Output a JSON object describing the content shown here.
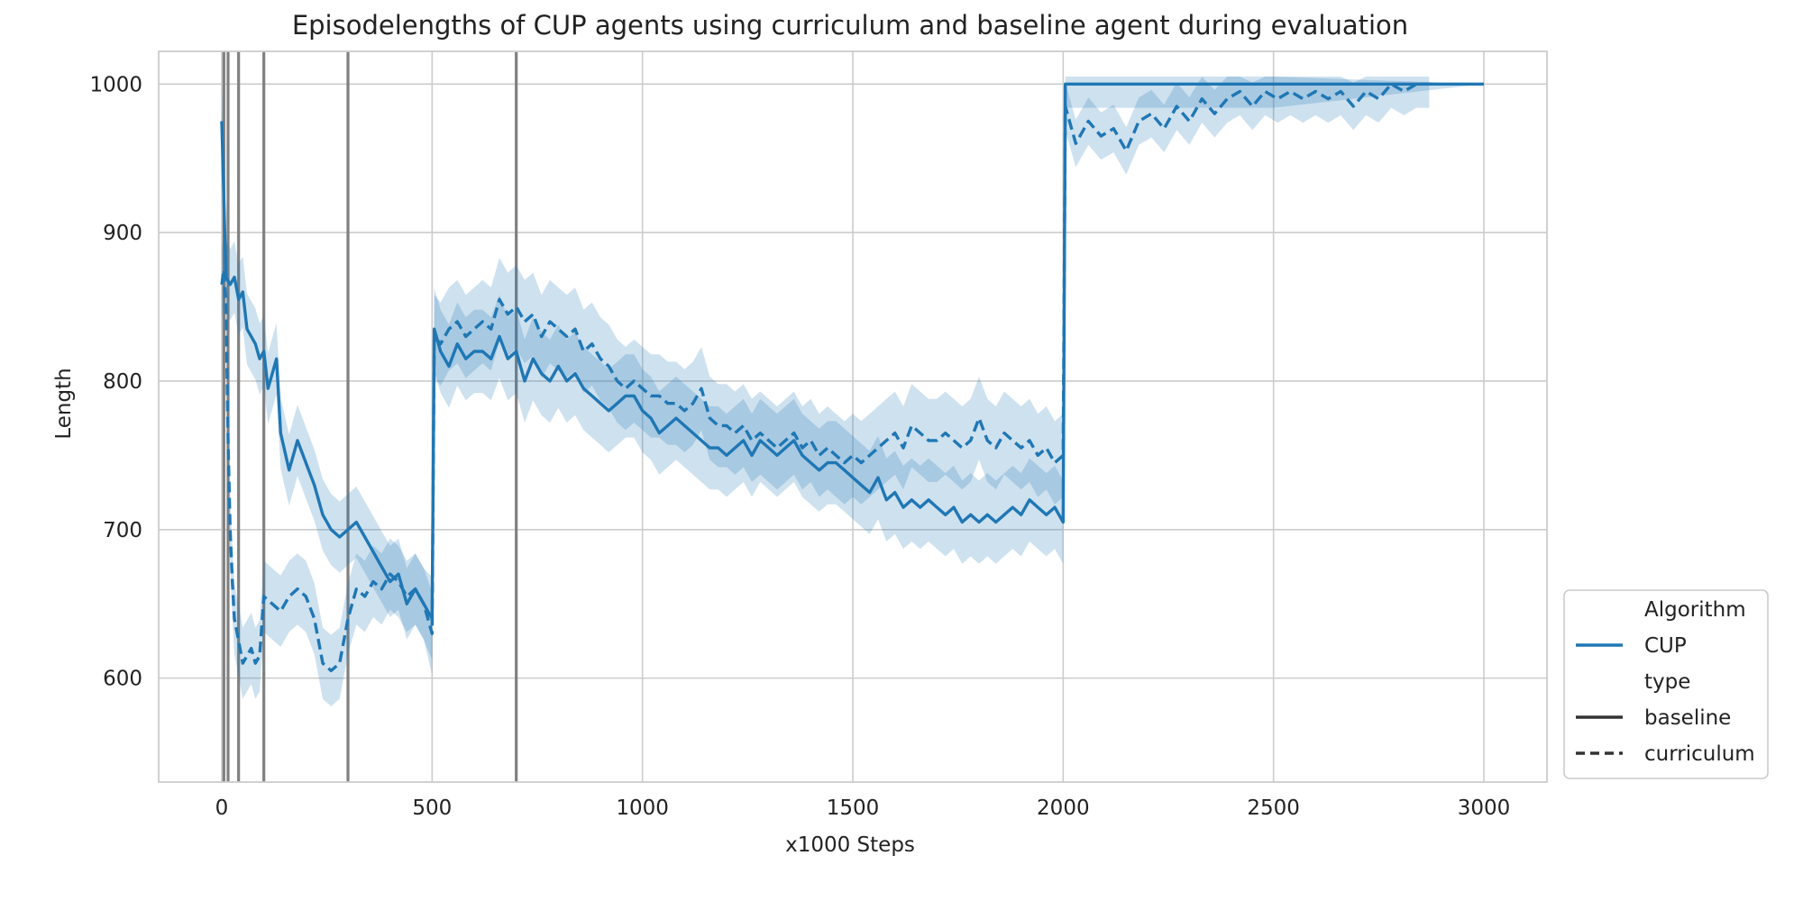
{
  "chart_data": {
    "type": "line",
    "title": "Episodelengths of CUP agents using curriculum and baseline agent during evaluation",
    "xlabel": "x1000 Steps",
    "ylabel": "Length",
    "xlim": [
      -150,
      3150
    ],
    "ylim": [
      530,
      1022
    ],
    "x_ticks": [
      0,
      500,
      1000,
      1500,
      2000,
      2500,
      3000
    ],
    "y_ticks": [
      600,
      700,
      800,
      900,
      1000
    ],
    "grid": true,
    "legend_position": "lower right, outside plot area",
    "colors": {
      "series": "#1f77b4",
      "band": "#1f77b4",
      "curriculum_markers": "#808080",
      "grid": "#cccccc",
      "axes": "#cccccc"
    },
    "curriculum_switch_steps": [
      5,
      15,
      40,
      100,
      300,
      700
    ],
    "legend": {
      "title_algorithm": "Algorithm",
      "algorithm_entries": [
        "CUP"
      ],
      "title_type": "type",
      "type_entries": [
        "baseline",
        "curriculum"
      ]
    },
    "series": [
      {
        "name": "baseline",
        "linestyle": "solid",
        "points": [
          [
            0,
            975
          ],
          [
            10,
            870
          ],
          [
            20,
            865
          ],
          [
            30,
            870
          ],
          [
            40,
            855
          ],
          [
            50,
            860
          ],
          [
            60,
            835
          ],
          [
            80,
            825
          ],
          [
            90,
            815
          ],
          [
            100,
            820
          ],
          [
            110,
            795
          ],
          [
            120,
            805
          ],
          [
            130,
            815
          ],
          [
            140,
            765
          ],
          [
            160,
            740
          ],
          [
            180,
            760
          ],
          [
            200,
            745
          ],
          [
            220,
            730
          ],
          [
            240,
            710
          ],
          [
            260,
            700
          ],
          [
            280,
            695
          ],
          [
            300,
            700
          ],
          [
            320,
            705
          ],
          [
            340,
            695
          ],
          [
            360,
            685
          ],
          [
            380,
            675
          ],
          [
            400,
            665
          ],
          [
            420,
            670
          ],
          [
            440,
            650
          ],
          [
            460,
            660
          ],
          [
            480,
            650
          ],
          [
            500,
            640
          ],
          [
            505,
            835
          ],
          [
            520,
            820
          ],
          [
            540,
            810
          ],
          [
            560,
            825
          ],
          [
            580,
            815
          ],
          [
            600,
            820
          ],
          [
            620,
            820
          ],
          [
            640,
            815
          ],
          [
            660,
            830
          ],
          [
            680,
            815
          ],
          [
            700,
            820
          ],
          [
            720,
            800
          ],
          [
            740,
            815
          ],
          [
            760,
            805
          ],
          [
            780,
            800
          ],
          [
            800,
            810
          ],
          [
            820,
            800
          ],
          [
            840,
            805
          ],
          [
            860,
            795
          ],
          [
            880,
            790
          ],
          [
            900,
            785
          ],
          [
            920,
            780
          ],
          [
            940,
            785
          ],
          [
            960,
            790
          ],
          [
            980,
            790
          ],
          [
            1000,
            780
          ],
          [
            1020,
            775
          ],
          [
            1040,
            765
          ],
          [
            1060,
            770
          ],
          [
            1080,
            775
          ],
          [
            1100,
            770
          ],
          [
            1120,
            765
          ],
          [
            1140,
            760
          ],
          [
            1160,
            755
          ],
          [
            1180,
            755
          ],
          [
            1200,
            750
          ],
          [
            1220,
            755
          ],
          [
            1240,
            760
          ],
          [
            1260,
            750
          ],
          [
            1280,
            760
          ],
          [
            1300,
            755
          ],
          [
            1320,
            750
          ],
          [
            1340,
            755
          ],
          [
            1360,
            760
          ],
          [
            1380,
            750
          ],
          [
            1400,
            745
          ],
          [
            1420,
            740
          ],
          [
            1440,
            745
          ],
          [
            1460,
            745
          ],
          [
            1480,
            740
          ],
          [
            1500,
            735
          ],
          [
            1520,
            730
          ],
          [
            1540,
            725
          ],
          [
            1560,
            735
          ],
          [
            1580,
            720
          ],
          [
            1600,
            725
          ],
          [
            1620,
            715
          ],
          [
            1640,
            720
          ],
          [
            1660,
            715
          ],
          [
            1680,
            720
          ],
          [
            1700,
            715
          ],
          [
            1720,
            710
          ],
          [
            1740,
            715
          ],
          [
            1760,
            705
          ],
          [
            1780,
            710
          ],
          [
            1800,
            705
          ],
          [
            1820,
            710
          ],
          [
            1840,
            705
          ],
          [
            1860,
            710
          ],
          [
            1880,
            715
          ],
          [
            1900,
            710
          ],
          [
            1920,
            720
          ],
          [
            1940,
            715
          ],
          [
            1960,
            710
          ],
          [
            1980,
            715
          ],
          [
            2000,
            705
          ],
          [
            2005,
            1000
          ],
          [
            2500,
            1000
          ],
          [
            3000,
            1000
          ]
        ]
      },
      {
        "name": "curriculum",
        "linestyle": "dashed",
        "points": [
          [
            0,
            865
          ],
          [
            5,
            875
          ],
          [
            10,
            850
          ],
          [
            15,
            760
          ],
          [
            20,
            700
          ],
          [
            25,
            665
          ],
          [
            30,
            640
          ],
          [
            40,
            625
          ],
          [
            50,
            610
          ],
          [
            60,
            615
          ],
          [
            70,
            620
          ],
          [
            80,
            610
          ],
          [
            90,
            615
          ],
          [
            100,
            655
          ],
          [
            120,
            650
          ],
          [
            140,
            645
          ],
          [
            160,
            655
          ],
          [
            180,
            660
          ],
          [
            200,
            655
          ],
          [
            220,
            640
          ],
          [
            240,
            610
          ],
          [
            260,
            605
          ],
          [
            280,
            610
          ],
          [
            300,
            640
          ],
          [
            320,
            660
          ],
          [
            340,
            655
          ],
          [
            360,
            665
          ],
          [
            380,
            660
          ],
          [
            400,
            670
          ],
          [
            420,
            665
          ],
          [
            440,
            655
          ],
          [
            460,
            660
          ],
          [
            480,
            650
          ],
          [
            500,
            630
          ],
          [
            505,
            830
          ],
          [
            520,
            825
          ],
          [
            540,
            835
          ],
          [
            560,
            840
          ],
          [
            580,
            830
          ],
          [
            600,
            835
          ],
          [
            620,
            840
          ],
          [
            640,
            835
          ],
          [
            660,
            855
          ],
          [
            680,
            845
          ],
          [
            700,
            850
          ],
          [
            720,
            840
          ],
          [
            740,
            845
          ],
          [
            760,
            830
          ],
          [
            780,
            840
          ],
          [
            800,
            835
          ],
          [
            820,
            830
          ],
          [
            840,
            835
          ],
          [
            860,
            820
          ],
          [
            880,
            825
          ],
          [
            900,
            815
          ],
          [
            920,
            810
          ],
          [
            940,
            800
          ],
          [
            960,
            795
          ],
          [
            980,
            800
          ],
          [
            1000,
            795
          ],
          [
            1020,
            790
          ],
          [
            1040,
            790
          ],
          [
            1060,
            785
          ],
          [
            1080,
            785
          ],
          [
            1100,
            780
          ],
          [
            1120,
            785
          ],
          [
            1140,
            795
          ],
          [
            1160,
            775
          ],
          [
            1180,
            770
          ],
          [
            1200,
            770
          ],
          [
            1220,
            765
          ],
          [
            1240,
            770
          ],
          [
            1260,
            760
          ],
          [
            1280,
            765
          ],
          [
            1300,
            760
          ],
          [
            1320,
            755
          ],
          [
            1340,
            760
          ],
          [
            1360,
            765
          ],
          [
            1380,
            755
          ],
          [
            1400,
            760
          ],
          [
            1420,
            750
          ],
          [
            1440,
            755
          ],
          [
            1460,
            750
          ],
          [
            1480,
            745
          ],
          [
            1500,
            750
          ],
          [
            1520,
            745
          ],
          [
            1540,
            750
          ],
          [
            1560,
            755
          ],
          [
            1580,
            760
          ],
          [
            1600,
            765
          ],
          [
            1620,
            755
          ],
          [
            1640,
            770
          ],
          [
            1660,
            765
          ],
          [
            1680,
            760
          ],
          [
            1700,
            760
          ],
          [
            1720,
            765
          ],
          [
            1740,
            760
          ],
          [
            1760,
            755
          ],
          [
            1780,
            760
          ],
          [
            1800,
            775
          ],
          [
            1820,
            760
          ],
          [
            1840,
            755
          ],
          [
            1860,
            765
          ],
          [
            1880,
            760
          ],
          [
            1900,
            755
          ],
          [
            1920,
            760
          ],
          [
            1940,
            750
          ],
          [
            1960,
            755
          ],
          [
            1980,
            745
          ],
          [
            2000,
            750
          ],
          [
            2005,
            985
          ],
          [
            2030,
            960
          ],
          [
            2060,
            975
          ],
          [
            2090,
            965
          ],
          [
            2120,
            970
          ],
          [
            2150,
            955
          ],
          [
            2180,
            975
          ],
          [
            2210,
            980
          ],
          [
            2240,
            970
          ],
          [
            2270,
            985
          ],
          [
            2300,
            975
          ],
          [
            2330,
            990
          ],
          [
            2360,
            980
          ],
          [
            2390,
            990
          ],
          [
            2420,
            995
          ],
          [
            2450,
            985
          ],
          [
            2480,
            995
          ],
          [
            2510,
            990
          ],
          [
            2540,
            995
          ],
          [
            2570,
            990
          ],
          [
            2600,
            995
          ],
          [
            2630,
            990
          ],
          [
            2660,
            995
          ],
          [
            2690,
            985
          ],
          [
            2720,
            995
          ],
          [
            2750,
            990
          ],
          [
            2780,
            1000
          ],
          [
            2810,
            995
          ],
          [
            2840,
            1000
          ],
          [
            2870,
            1000
          ]
        ]
      }
    ]
  }
}
